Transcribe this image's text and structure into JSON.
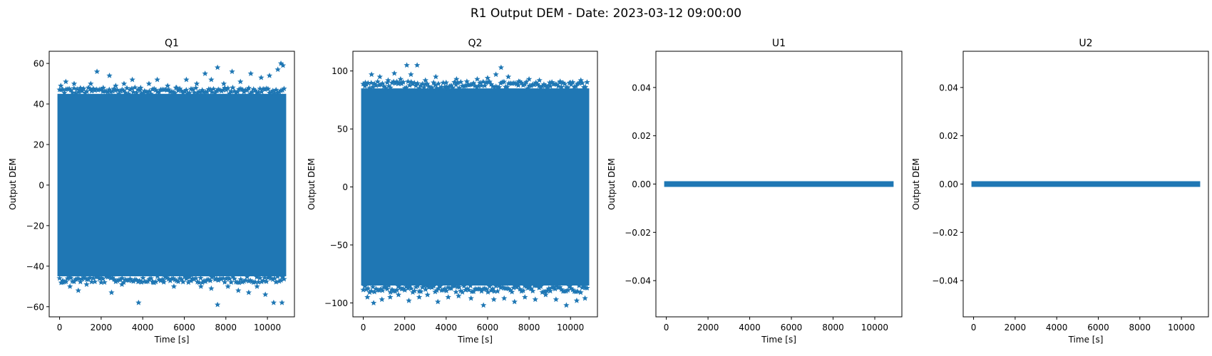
{
  "suptitle": "R1 Output DEM - Date: 2023-03-12 09:00:00",
  "colors": {
    "series": "#1f77b4",
    "axes": "#000000",
    "background": "#ffffff"
  },
  "chart_data": [
    {
      "type": "scatter",
      "title": "Q1",
      "xlabel": "Time [s]",
      "ylabel": "Output DEM",
      "xlim": [
        -500,
        11300
      ],
      "ylim": [
        -65,
        66
      ],
      "xticks": [
        0,
        2000,
        4000,
        6000,
        8000,
        10000
      ],
      "yticks": [
        -60,
        -40,
        -20,
        0,
        20,
        40,
        60
      ],
      "marker": "star",
      "grid": false,
      "dense_band": {
        "x_range": [
          0,
          10800
        ],
        "y_range": [
          -45,
          45
        ]
      },
      "outliers": [
        [
          60,
          49
        ],
        [
          300,
          51
        ],
        [
          700,
          50
        ],
        [
          1000,
          47
        ],
        [
          1500,
          50
        ],
        [
          1800,
          56
        ],
        [
          2100,
          48
        ],
        [
          2400,
          54
        ],
        [
          2700,
          49
        ],
        [
          3100,
          50
        ],
        [
          3500,
          52
        ],
        [
          3900,
          48
        ],
        [
          4300,
          50
        ],
        [
          4700,
          52
        ],
        [
          5200,
          49
        ],
        [
          5600,
          48
        ],
        [
          6100,
          52
        ],
        [
          6600,
          50
        ],
        [
          7000,
          55
        ],
        [
          7300,
          52
        ],
        [
          7600,
          58
        ],
        [
          7900,
          50
        ],
        [
          8300,
          56
        ],
        [
          8700,
          51
        ],
        [
          9200,
          55
        ],
        [
          9700,
          53
        ],
        [
          10100,
          54
        ],
        [
          10500,
          57
        ],
        [
          10650,
          60
        ],
        [
          10750,
          59
        ],
        [
          150,
          -48
        ],
        [
          500,
          -50
        ],
        [
          900,
          -52
        ],
        [
          1300,
          -49
        ],
        [
          2000,
          -48
        ],
        [
          2500,
          -53
        ],
        [
          3000,
          -49
        ],
        [
          3800,
          -58
        ],
        [
          4500,
          -48
        ],
        [
          5000,
          -47
        ],
        [
          5500,
          -50
        ],
        [
          6200,
          -48
        ],
        [
          6800,
          -50
        ],
        [
          7300,
          -51
        ],
        [
          7600,
          -59
        ],
        [
          8100,
          -50
        ],
        [
          8600,
          -52
        ],
        [
          9100,
          -53
        ],
        [
          9500,
          -50
        ],
        [
          9900,
          -54
        ],
        [
          10300,
          -58
        ],
        [
          10700,
          -58
        ]
      ]
    },
    {
      "type": "scatter",
      "title": "Q2",
      "xlabel": "Time [s]",
      "ylabel": "Output DEM",
      "xlim": [
        -500,
        11300
      ],
      "ylim": [
        -112,
        117
      ],
      "xticks": [
        0,
        2000,
        4000,
        6000,
        8000,
        10000
      ],
      "yticks": [
        -100,
        -50,
        0,
        50,
        100
      ],
      "marker": "star",
      "grid": false,
      "dense_band": {
        "x_range": [
          0,
          10800
        ],
        "y_range": [
          -85,
          85
        ]
      },
      "outliers": [
        [
          100,
          90
        ],
        [
          400,
          97
        ],
        [
          800,
          95
        ],
        [
          1200,
          92
        ],
        [
          1500,
          98
        ],
        [
          1800,
          93
        ],
        [
          2100,
          105
        ],
        [
          2300,
          97
        ],
        [
          2600,
          105
        ],
        [
          3000,
          92
        ],
        [
          3500,
          95
        ],
        [
          4000,
          90
        ],
        [
          4500,
          93
        ],
        [
          5000,
          91
        ],
        [
          5500,
          93
        ],
        [
          6000,
          94
        ],
        [
          6400,
          97
        ],
        [
          6650,
          103
        ],
        [
          7000,
          95
        ],
        [
          7500,
          91
        ],
        [
          8000,
          93
        ],
        [
          8500,
          92
        ],
        [
          9000,
          90
        ],
        [
          9500,
          91
        ],
        [
          10000,
          90
        ],
        [
          10500,
          92
        ],
        [
          200,
          -95
        ],
        [
          500,
          -100
        ],
        [
          900,
          -97
        ],
        [
          1300,
          -95
        ],
        [
          1700,
          -93
        ],
        [
          2200,
          -98
        ],
        [
          2700,
          -95
        ],
        [
          3100,
          -93
        ],
        [
          3600,
          -99
        ],
        [
          4100,
          -95
        ],
        [
          4600,
          -94
        ],
        [
          5200,
          -96
        ],
        [
          5800,
          -102
        ],
        [
          6300,
          -97
        ],
        [
          6800,
          -96
        ],
        [
          7300,
          -99
        ],
        [
          7800,
          -95
        ],
        [
          8300,
          -97
        ],
        [
          8800,
          -93
        ],
        [
          9300,
          -97
        ],
        [
          9800,
          -102
        ],
        [
          10300,
          -98
        ],
        [
          10700,
          -96
        ]
      ]
    },
    {
      "type": "scatter",
      "title": "U1",
      "xlabel": "Time [s]",
      "ylabel": "Output DEM",
      "xlim": [
        -500,
        11300
      ],
      "ylim": [
        -0.055,
        0.055
      ],
      "xticks": [
        0,
        2000,
        4000,
        6000,
        8000,
        10000
      ],
      "yticks": [
        -0.04,
        -0.02,
        0.0,
        0.02,
        0.04
      ],
      "ytick_labels": [
        "−0.04",
        "−0.02",
        "0.00",
        "0.02",
        "0.04"
      ],
      "marker": "star",
      "grid": false,
      "constant_series": {
        "x_range": [
          0,
          10800
        ],
        "y": 0
      }
    },
    {
      "type": "scatter",
      "title": "U2",
      "xlabel": "Time [s]",
      "ylabel": "Output DEM",
      "xlim": [
        -500,
        11300
      ],
      "ylim": [
        -0.055,
        0.055
      ],
      "xticks": [
        0,
        2000,
        4000,
        6000,
        8000,
        10000
      ],
      "yticks": [
        -0.04,
        -0.02,
        0.0,
        0.02,
        0.04
      ],
      "ytick_labels": [
        "−0.04",
        "−0.02",
        "0.00",
        "0.02",
        "0.04"
      ],
      "marker": "star",
      "grid": false,
      "constant_series": {
        "x_range": [
          0,
          10800
        ],
        "y": 0
      }
    }
  ]
}
